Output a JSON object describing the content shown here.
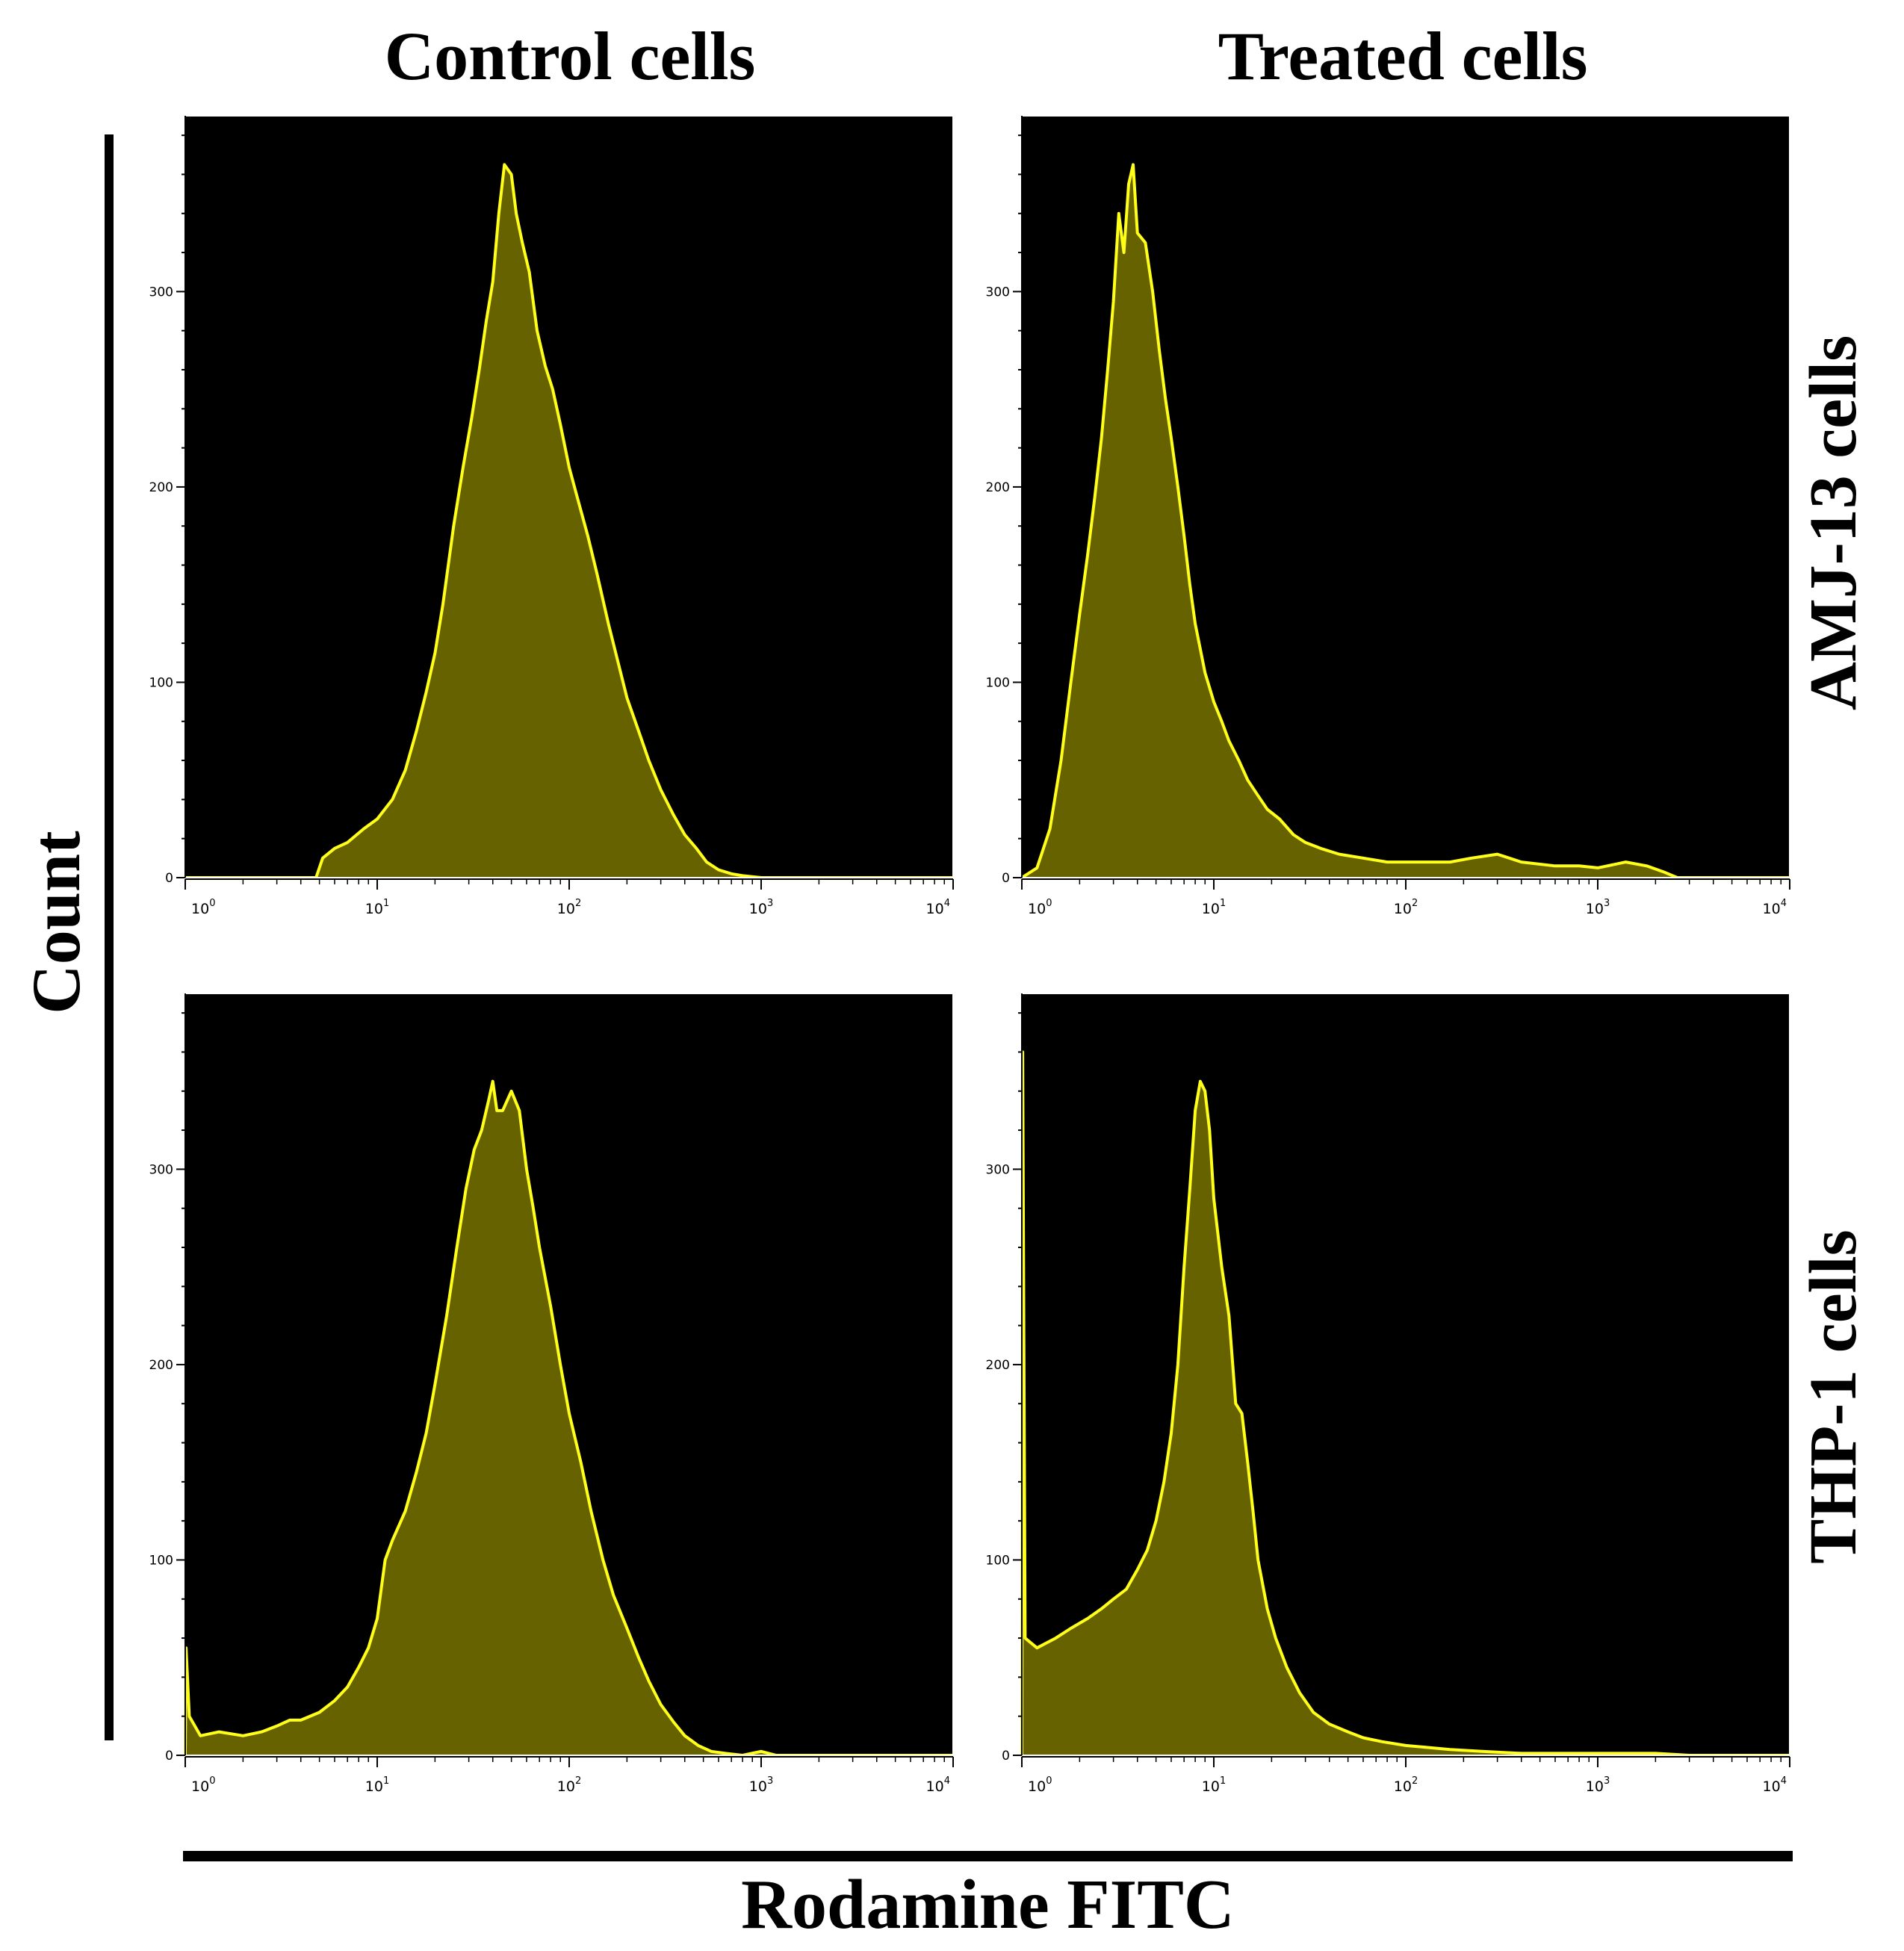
{
  "figure": {
    "col_titles": [
      "Control cells",
      "Treated cells"
    ],
    "row_labels": [
      "AMJ-13 cells",
      "THP-1 cells"
    ],
    "ylabel": "Count",
    "xlabel": "Rodamine FITC"
  },
  "colors": {
    "plot_background": "#000000",
    "line": "#ffff1a",
    "fill": "#666200",
    "axis": "#000000",
    "frame": "#ffffff"
  },
  "chart_data": [
    {
      "type": "area",
      "id": "amj-control",
      "title": "Control cells",
      "row": "AMJ-13 cells",
      "xscale": "log",
      "xlim": [
        1,
        10000
      ],
      "ylim": [
        0,
        390
      ],
      "yticks": [
        0,
        100,
        200,
        300
      ],
      "xticks": [
        1,
        10,
        100,
        1000,
        10000
      ],
      "xtick_labels": [
        {
          "base": "10",
          "exp": "0"
        },
        {
          "base": "10",
          "exp": "1"
        },
        {
          "base": "10",
          "exp": "2"
        },
        {
          "base": "10",
          "exp": "3"
        },
        {
          "base": "10",
          "exp": "4"
        }
      ],
      "points": [
        [
          1,
          0
        ],
        [
          4.8,
          0
        ],
        [
          5.2,
          10
        ],
        [
          6,
          15
        ],
        [
          7,
          18
        ],
        [
          8.5,
          25
        ],
        [
          10,
          30
        ],
        [
          12,
          40
        ],
        [
          14,
          55
        ],
        [
          16,
          75
        ],
        [
          18,
          95
        ],
        [
          20,
          115
        ],
        [
          22,
          140
        ],
        [
          25,
          180
        ],
        [
          28,
          210
        ],
        [
          31,
          235
        ],
        [
          34,
          260
        ],
        [
          37,
          285
        ],
        [
          40,
          305
        ],
        [
          43,
          340
        ],
        [
          46,
          365
        ],
        [
          50,
          360
        ],
        [
          53,
          340
        ],
        [
          57,
          325
        ],
        [
          62,
          310
        ],
        [
          68,
          280
        ],
        [
          75,
          262
        ],
        [
          82,
          250
        ],
        [
          90,
          232
        ],
        [
          100,
          210
        ],
        [
          110,
          195
        ],
        [
          125,
          175
        ],
        [
          140,
          155
        ],
        [
          160,
          130
        ],
        [
          180,
          110
        ],
        [
          200,
          92
        ],
        [
          230,
          75
        ],
        [
          260,
          60
        ],
        [
          300,
          45
        ],
        [
          350,
          32
        ],
        [
          400,
          22
        ],
        [
          460,
          15
        ],
        [
          520,
          8
        ],
        [
          600,
          4
        ],
        [
          700,
          2
        ],
        [
          800,
          1
        ],
        [
          1000,
          0
        ],
        [
          10000,
          0
        ]
      ]
    },
    {
      "type": "area",
      "id": "amj-treated",
      "title": "Treated cells",
      "row": "AMJ-13 cells",
      "xscale": "log",
      "xlim": [
        1,
        10000
      ],
      "ylim": [
        0,
        390
      ],
      "yticks": [
        0,
        100,
        200,
        300
      ],
      "xticks": [
        1,
        10,
        100,
        1000,
        10000
      ],
      "xtick_labels": [
        {
          "base": "10",
          "exp": "0"
        },
        {
          "base": "10",
          "exp": "1"
        },
        {
          "base": "10",
          "exp": "2"
        },
        {
          "base": "10",
          "exp": "3"
        },
        {
          "base": "10",
          "exp": "4"
        }
      ],
      "points": [
        [
          1,
          0
        ],
        [
          1.2,
          5
        ],
        [
          1.4,
          25
        ],
        [
          1.6,
          60
        ],
        [
          1.8,
          100
        ],
        [
          2.0,
          135
        ],
        [
          2.2,
          165
        ],
        [
          2.4,
          195
        ],
        [
          2.6,
          225
        ],
        [
          2.8,
          260
        ],
        [
          3.0,
          295
        ],
        [
          3.2,
          340
        ],
        [
          3.4,
          320
        ],
        [
          3.6,
          355
        ],
        [
          3.8,
          365
        ],
        [
          4.0,
          330
        ],
        [
          4.4,
          325
        ],
        [
          4.8,
          300
        ],
        [
          5.2,
          270
        ],
        [
          5.6,
          245
        ],
        [
          6.0,
          225
        ],
        [
          6.5,
          200
        ],
        [
          7,
          175
        ],
        [
          7.5,
          150
        ],
        [
          8,
          130
        ],
        [
          9,
          105
        ],
        [
          10,
          90
        ],
        [
          11,
          80
        ],
        [
          12,
          70
        ],
        [
          13.5,
          60
        ],
        [
          15,
          50
        ],
        [
          17,
          42
        ],
        [
          19,
          35
        ],
        [
          22,
          30
        ],
        [
          26,
          22
        ],
        [
          30,
          18
        ],
        [
          36,
          15
        ],
        [
          45,
          12
        ],
        [
          60,
          10
        ],
        [
          80,
          8
        ],
        [
          100,
          8
        ],
        [
          130,
          8
        ],
        [
          170,
          8
        ],
        [
          220,
          10
        ],
        [
          300,
          12
        ],
        [
          400,
          8
        ],
        [
          600,
          6
        ],
        [
          800,
          6
        ],
        [
          1000,
          5
        ],
        [
          1400,
          8
        ],
        [
          1800,
          6
        ],
        [
          2200,
          3
        ],
        [
          2600,
          0
        ],
        [
          10000,
          0
        ]
      ]
    },
    {
      "type": "area",
      "id": "thp-control",
      "title": "Control cells",
      "row": "THP-1 cells",
      "xscale": "log",
      "xlim": [
        1,
        10000
      ],
      "ylim": [
        0,
        390
      ],
      "yticks": [
        0,
        100,
        200,
        300
      ],
      "xticks": [
        1,
        10,
        100,
        1000,
        10000
      ],
      "xtick_labels": [
        {
          "base": "10",
          "exp": "0"
        },
        {
          "base": "10",
          "exp": "1"
        },
        {
          "base": "10",
          "exp": "2"
        },
        {
          "base": "10",
          "exp": "3"
        },
        {
          "base": "10",
          "exp": "4"
        }
      ],
      "points": [
        [
          1,
          0
        ],
        [
          1.01,
          55
        ],
        [
          1.05,
          20
        ],
        [
          1.2,
          10
        ],
        [
          1.5,
          12
        ],
        [
          2,
          10
        ],
        [
          2.5,
          12
        ],
        [
          3,
          15
        ],
        [
          3.5,
          18
        ],
        [
          4,
          18
        ],
        [
          5,
          22
        ],
        [
          6,
          28
        ],
        [
          7,
          35
        ],
        [
          8,
          45
        ],
        [
          9,
          55
        ],
        [
          10,
          70
        ],
        [
          11,
          100
        ],
        [
          12,
          110
        ],
        [
          14,
          125
        ],
        [
          16,
          145
        ],
        [
          18,
          165
        ],
        [
          20,
          190
        ],
        [
          23,
          225
        ],
        [
          26,
          260
        ],
        [
          29,
          290
        ],
        [
          32,
          310
        ],
        [
          35,
          320
        ],
        [
          38,
          335
        ],
        [
          40,
          345
        ],
        [
          42,
          330
        ],
        [
          45,
          330
        ],
        [
          50,
          340
        ],
        [
          55,
          330
        ],
        [
          60,
          300
        ],
        [
          65,
          280
        ],
        [
          70,
          260
        ],
        [
          80,
          230
        ],
        [
          90,
          200
        ],
        [
          100,
          175
        ],
        [
          115,
          150
        ],
        [
          130,
          125
        ],
        [
          150,
          100
        ],
        [
          170,
          82
        ],
        [
          200,
          65
        ],
        [
          230,
          50
        ],
        [
          260,
          38
        ],
        [
          300,
          26
        ],
        [
          350,
          17
        ],
        [
          400,
          10
        ],
        [
          470,
          5
        ],
        [
          550,
          2
        ],
        [
          650,
          1
        ],
        [
          800,
          0
        ],
        [
          1000,
          2
        ],
        [
          1200,
          0
        ],
        [
          10000,
          0
        ]
      ]
    },
    {
      "type": "area",
      "id": "thp-treated",
      "title": "Treated cells",
      "row": "THP-1 cells",
      "xscale": "log",
      "xlim": [
        1,
        10000
      ],
      "ylim": [
        0,
        390
      ],
      "yticks": [
        0,
        100,
        200,
        300
      ],
      "xticks": [
        1,
        10,
        100,
        1000,
        10000
      ],
      "xtick_labels": [
        {
          "base": "10",
          "exp": "0"
        },
        {
          "base": "10",
          "exp": "1"
        },
        {
          "base": "10",
          "exp": "2"
        },
        {
          "base": "10",
          "exp": "3"
        },
        {
          "base": "10",
          "exp": "4"
        }
      ],
      "points": [
        [
          1,
          0
        ],
        [
          1.01,
          360
        ],
        [
          1.04,
          60
        ],
        [
          1.2,
          55
        ],
        [
          1.5,
          60
        ],
        [
          1.8,
          65
        ],
        [
          2.2,
          70
        ],
        [
          2.6,
          75
        ],
        [
          3.0,
          80
        ],
        [
          3.5,
          85
        ],
        [
          4.0,
          95
        ],
        [
          4.5,
          105
        ],
        [
          5,
          120
        ],
        [
          5.5,
          140
        ],
        [
          6,
          165
        ],
        [
          6.5,
          200
        ],
        [
          7,
          250
        ],
        [
          7.5,
          290
        ],
        [
          8,
          330
        ],
        [
          8.5,
          345
        ],
        [
          9,
          340
        ],
        [
          9.5,
          320
        ],
        [
          10,
          285
        ],
        [
          11,
          250
        ],
        [
          12,
          225
        ],
        [
          13,
          180
        ],
        [
          14,
          175
        ],
        [
          15,
          150
        ],
        [
          16,
          125
        ],
        [
          17,
          100
        ],
        [
          19,
          75
        ],
        [
          21,
          60
        ],
        [
          24,
          45
        ],
        [
          28,
          32
        ],
        [
          33,
          22
        ],
        [
          40,
          16
        ],
        [
          50,
          12
        ],
        [
          60,
          9
        ],
        [
          75,
          7
        ],
        [
          100,
          5
        ],
        [
          130,
          4
        ],
        [
          170,
          3
        ],
        [
          250,
          2
        ],
        [
          400,
          1
        ],
        [
          700,
          1
        ],
        [
          1200,
          1
        ],
        [
          2000,
          1
        ],
        [
          3000,
          0
        ],
        [
          10000,
          0
        ]
      ]
    }
  ]
}
